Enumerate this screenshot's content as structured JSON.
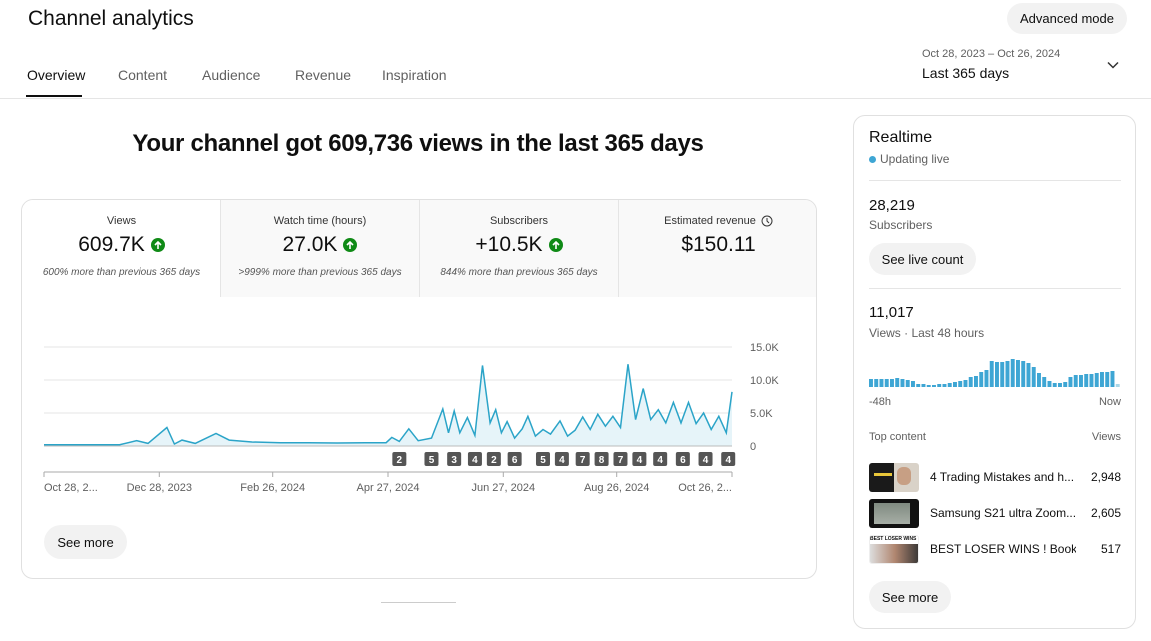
{
  "header": {
    "title": "Channel analytics",
    "advanced_mode": "Advanced mode",
    "tabs": [
      {
        "label": "Overview"
      },
      {
        "label": "Content"
      },
      {
        "label": "Audience"
      },
      {
        "label": "Revenue"
      },
      {
        "label": "Inspiration"
      }
    ],
    "active_tab": "Overview",
    "date_range": {
      "dates": "Oct 28, 2023 – Oct 26, 2024",
      "label": "Last 365 days"
    }
  },
  "main": {
    "headline": "Your channel got 609,736 views in the last 365 days",
    "metrics": [
      {
        "label": "Views",
        "value": "609.7K",
        "sub": "600% more than previous 365 days",
        "trend": "up"
      },
      {
        "label": "Watch time (hours)",
        "value": "27.0K",
        "sub": ">999% more than previous 365 days",
        "trend": "up"
      },
      {
        "label": "Subscribers",
        "value": "+10.5K",
        "sub": "844% more than previous 365 days",
        "trend": "up"
      },
      {
        "label": "Estimated revenue",
        "value": "$150.11",
        "icon": "clock-icon"
      }
    ],
    "see_more": "See more"
  },
  "chart_data": {
    "type": "area",
    "color": "#2ba4c8",
    "xlim": [
      "2023-10-28",
      "2024-10-26"
    ],
    "ylim": [
      0,
      15000
    ],
    "grid": true,
    "yticks": [
      {
        "v": 0,
        "label": "0"
      },
      {
        "v": 5000,
        "label": "5.0K"
      },
      {
        "v": 10000,
        "label": "10.0K"
      },
      {
        "v": 15000,
        "label": "15.0K"
      }
    ],
    "xticks": [
      {
        "d": "2023-10-28",
        "label": "Oct 28, 2..."
      },
      {
        "d": "2023-12-28",
        "label": "Dec 28, 2023"
      },
      {
        "d": "2024-02-26",
        "label": "Feb 26, 2024"
      },
      {
        "d": "2024-04-27",
        "label": "Apr 27, 2024"
      },
      {
        "d": "2024-06-27",
        "label": "Jun 27, 2024"
      },
      {
        "d": "2024-08-26",
        "label": "Aug 26, 2024"
      },
      {
        "d": "2024-10-26",
        "label": "Oct 26, 2..."
      }
    ],
    "points": [
      [
        "2023-10-28",
        200
      ],
      [
        "2023-11-07",
        180
      ],
      [
        "2023-11-17",
        200
      ],
      [
        "2023-11-27",
        180
      ],
      [
        "2023-12-07",
        200
      ],
      [
        "2023-12-16",
        800
      ],
      [
        "2023-12-22",
        400
      ],
      [
        "2024-01-01",
        2800
      ],
      [
        "2024-01-05",
        300
      ],
      [
        "2024-01-09",
        900
      ],
      [
        "2024-01-16",
        400
      ],
      [
        "2024-01-27",
        1900
      ],
      [
        "2024-02-03",
        900
      ],
      [
        "2024-02-15",
        600
      ],
      [
        "2024-03-01",
        500
      ],
      [
        "2024-03-16",
        500
      ],
      [
        "2024-03-31",
        450
      ],
      [
        "2024-04-15",
        500
      ],
      [
        "2024-04-26",
        500
      ],
      [
        "2024-04-29",
        1300
      ],
      [
        "2024-05-03",
        700
      ],
      [
        "2024-05-08",
        2600
      ],
      [
        "2024-05-13",
        800
      ],
      [
        "2024-05-20",
        1200
      ],
      [
        "2024-05-26",
        5600
      ],
      [
        "2024-05-29",
        2000
      ],
      [
        "2024-06-01",
        5300
      ],
      [
        "2024-06-04",
        2000
      ],
      [
        "2024-06-08",
        4300
      ],
      [
        "2024-06-12",
        1600
      ],
      [
        "2024-06-16",
        12200
      ],
      [
        "2024-06-20",
        3500
      ],
      [
        "2024-06-23",
        5500
      ],
      [
        "2024-06-26",
        2000
      ],
      [
        "2024-06-29",
        3700
      ],
      [
        "2024-07-03",
        1200
      ],
      [
        "2024-07-07",
        2600
      ],
      [
        "2024-07-10",
        4500
      ],
      [
        "2024-07-14",
        1500
      ],
      [
        "2024-07-18",
        2500
      ],
      [
        "2024-07-22",
        1800
      ],
      [
        "2024-07-27",
        3800
      ],
      [
        "2024-07-31",
        1500
      ],
      [
        "2024-08-04",
        2400
      ],
      [
        "2024-08-08",
        4400
      ],
      [
        "2024-08-12",
        2500
      ],
      [
        "2024-08-16",
        4800
      ],
      [
        "2024-08-20",
        3000
      ],
      [
        "2024-08-24",
        4500
      ],
      [
        "2024-08-28",
        2800
      ],
      [
        "2024-09-01",
        12400
      ],
      [
        "2024-09-05",
        4000
      ],
      [
        "2024-09-09",
        8700
      ],
      [
        "2024-09-13",
        4000
      ],
      [
        "2024-09-17",
        5500
      ],
      [
        "2024-09-21",
        3500
      ],
      [
        "2024-09-25",
        6600
      ],
      [
        "2024-09-29",
        3500
      ],
      [
        "2024-10-03",
        6600
      ],
      [
        "2024-10-07",
        3400
      ],
      [
        "2024-10-11",
        5000
      ],
      [
        "2024-10-15",
        2500
      ],
      [
        "2024-10-19",
        4500
      ],
      [
        "2024-10-23",
        2000
      ],
      [
        "2024-10-26",
        8200
      ]
    ],
    "markers": [
      [
        "2024-05-03",
        "2"
      ],
      [
        "2024-05-20",
        "5"
      ],
      [
        "2024-06-01",
        "3"
      ],
      [
        "2024-06-12",
        "4"
      ],
      [
        "2024-06-22",
        "2"
      ],
      [
        "2024-07-03",
        "6"
      ],
      [
        "2024-07-18",
        "5"
      ],
      [
        "2024-07-28",
        "4"
      ],
      [
        "2024-08-08",
        "7"
      ],
      [
        "2024-08-18",
        "8"
      ],
      [
        "2024-08-28",
        "7"
      ],
      [
        "2024-09-07",
        "4"
      ],
      [
        "2024-09-18",
        "4"
      ],
      [
        "2024-09-30",
        "6"
      ],
      [
        "2024-10-12",
        "4"
      ],
      [
        "2024-10-24",
        "4"
      ]
    ]
  },
  "realtime": {
    "title": "Realtime",
    "status": "Updating live",
    "status_color": "#3ea6d4",
    "subscribers": "28,219",
    "subscribers_label": "Subscribers",
    "see_live": "See live count",
    "views": "11,017",
    "views_label": "Views · Last 48 hours",
    "bars": [
      8,
      8,
      8,
      8,
      8,
      9,
      8,
      7,
      6,
      3,
      3,
      2,
      2,
      3,
      3,
      4,
      5,
      6,
      7,
      10,
      11,
      15,
      17,
      26,
      25,
      25,
      26,
      28,
      27,
      26,
      24,
      20,
      14,
      10,
      6,
      4,
      4,
      5,
      10,
      12,
      12,
      13,
      13,
      14,
      15,
      15,
      16,
      3
    ],
    "axis_start": "-48h",
    "axis_end": "Now",
    "top_content_label": "Top content",
    "views_col": "Views",
    "top_content": [
      {
        "title": "4 Trading Mistakes and h...",
        "views": "2,948"
      },
      {
        "title": "Samsung S21 ultra Zoom...",
        "views": "2,605"
      },
      {
        "title": "BEST LOSER WINS ! Book ...",
        "views": "517",
        "thumb_text": "BEST LOSER WINS"
      }
    ],
    "see_more": "See more"
  }
}
